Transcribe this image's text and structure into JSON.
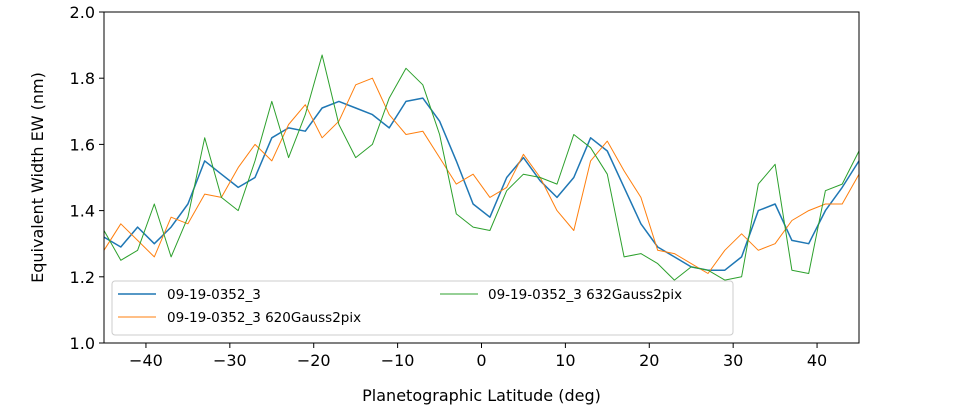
{
  "chart_data": {
    "type": "line",
    "xlabel": "Planetographic Latitude (deg)",
    "ylabel": "Equivalent Width EW (nm)",
    "xlim": [
      -45,
      45
    ],
    "ylim": [
      1.0,
      2.0
    ],
    "xticks": [
      -40,
      -30,
      -20,
      -10,
      0,
      10,
      20,
      30,
      40
    ],
    "xtick_labels": [
      "−40",
      "−30",
      "−20",
      "−10",
      "0",
      "10",
      "20",
      "30",
      "40"
    ],
    "yticks": [
      1.0,
      1.2,
      1.4,
      1.6,
      1.8,
      2.0
    ],
    "ytick_labels": [
      "1.0",
      "1.2",
      "1.4",
      "1.6",
      "1.8",
      "2.0"
    ],
    "grid": false,
    "legend_position": "lower-left",
    "series": [
      {
        "name": "09-19-0352_3",
        "color": "#1f77b4",
        "x": [
          -45,
          -43,
          -41,
          -39,
          -37,
          -35,
          -33,
          -31,
          -29,
          -27,
          -25,
          -23,
          -21,
          -19,
          -17,
          -15,
          -13,
          -11,
          -9,
          -7,
          -5,
          -3,
          -1,
          1,
          3,
          5,
          7,
          9,
          11,
          13,
          15,
          17,
          19,
          21,
          23,
          25,
          27,
          29,
          31,
          33,
          35,
          37,
          39,
          41,
          43,
          45
        ],
        "values": [
          1.32,
          1.29,
          1.35,
          1.3,
          1.35,
          1.42,
          1.55,
          1.51,
          1.47,
          1.5,
          1.62,
          1.65,
          1.64,
          1.71,
          1.73,
          1.71,
          1.69,
          1.65,
          1.73,
          1.74,
          1.67,
          1.55,
          1.42,
          1.38,
          1.5,
          1.56,
          1.49,
          1.44,
          1.5,
          1.62,
          1.58,
          1.47,
          1.36,
          1.29,
          1.26,
          1.23,
          1.22,
          1.22,
          1.26,
          1.4,
          1.42,
          1.31,
          1.3,
          1.4,
          1.47,
          1.55
        ]
      },
      {
        "name": "09-19-0352_3 620Gauss2pix",
        "color": "#ff7f0e",
        "x": [
          -45,
          -43,
          -41,
          -39,
          -37,
          -35,
          -33,
          -31,
          -29,
          -27,
          -25,
          -23,
          -21,
          -19,
          -17,
          -15,
          -13,
          -11,
          -9,
          -7,
          -5,
          -3,
          -1,
          1,
          3,
          5,
          7,
          9,
          11,
          13,
          15,
          17,
          19,
          21,
          23,
          25,
          27,
          29,
          31,
          33,
          35,
          37,
          39,
          41,
          43,
          45
        ],
        "values": [
          1.28,
          1.36,
          1.31,
          1.26,
          1.38,
          1.36,
          1.45,
          1.44,
          1.53,
          1.6,
          1.55,
          1.66,
          1.72,
          1.62,
          1.67,
          1.78,
          1.8,
          1.69,
          1.63,
          1.64,
          1.56,
          1.48,
          1.51,
          1.44,
          1.47,
          1.57,
          1.5,
          1.4,
          1.34,
          1.55,
          1.61,
          1.52,
          1.44,
          1.28,
          1.27,
          1.24,
          1.21,
          1.28,
          1.33,
          1.28,
          1.3,
          1.37,
          1.4,
          1.42,
          1.42,
          1.51
        ]
      },
      {
        "name": "09-19-0352_3 632Gauss2pix",
        "color": "#2ca02c",
        "x": [
          -45,
          -43,
          -41,
          -39,
          -37,
          -35,
          -33,
          -31,
          -29,
          -27,
          -25,
          -23,
          -21,
          -19,
          -17,
          -15,
          -13,
          -11,
          -9,
          -7,
          -5,
          -3,
          -1,
          1,
          3,
          5,
          7,
          9,
          11,
          13,
          15,
          17,
          19,
          21,
          23,
          25,
          27,
          29,
          31,
          33,
          35,
          37,
          39,
          41,
          43,
          45
        ],
        "values": [
          1.34,
          1.25,
          1.28,
          1.42,
          1.26,
          1.38,
          1.62,
          1.44,
          1.4,
          1.55,
          1.73,
          1.56,
          1.69,
          1.87,
          1.66,
          1.56,
          1.6,
          1.74,
          1.83,
          1.78,
          1.63,
          1.39,
          1.35,
          1.34,
          1.46,
          1.51,
          1.5,
          1.48,
          1.63,
          1.59,
          1.51,
          1.26,
          1.27,
          1.24,
          1.19,
          1.23,
          1.22,
          1.19,
          1.2,
          1.48,
          1.54,
          1.22,
          1.21,
          1.46,
          1.48,
          1.58
        ]
      }
    ]
  }
}
